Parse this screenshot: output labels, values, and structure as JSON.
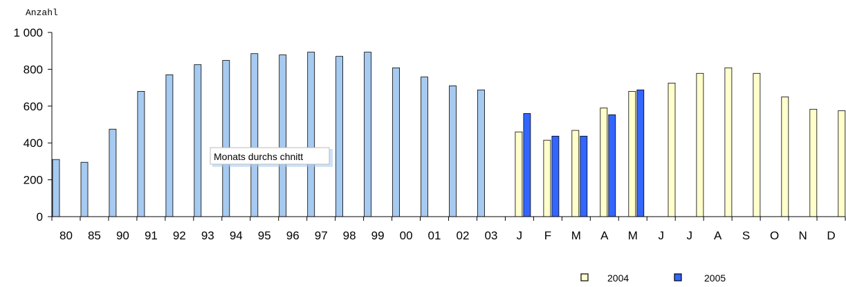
{
  "chart_data": {
    "type": "bar",
    "ylabel": "Anzahl",
    "ylim": [
      0,
      1000
    ],
    "yticks": [
      "0",
      "200",
      "400",
      "600",
      "800",
      "1 000"
    ],
    "grid": false,
    "categories": [
      "80",
      "85",
      "90",
      "91",
      "92",
      "93",
      "94",
      "95",
      "96",
      "97",
      "98",
      "99",
      "00",
      "01",
      "02",
      "03",
      "J",
      "F",
      "M",
      "A",
      "M",
      "J",
      "J",
      "A",
      "S",
      "O",
      "N",
      "D"
    ],
    "annotation": "Monats durchs chnitt",
    "series": [
      {
        "color": "#a6caf0",
        "values": [
          310,
          295,
          475,
          680,
          770,
          825,
          848,
          885,
          878,
          893,
          870,
          893,
          808,
          758,
          710,
          688,
          null,
          null,
          null,
          null,
          null,
          null,
          null,
          null,
          null,
          null,
          null,
          null
        ]
      },
      {
        "name": "2004",
        "color": "#ffffcc",
        "values": [
          null,
          null,
          null,
          null,
          null,
          null,
          null,
          null,
          null,
          null,
          null,
          null,
          null,
          null,
          null,
          null,
          460,
          415,
          468,
          590,
          680,
          725,
          778,
          808,
          778,
          650,
          583,
          575
        ]
      },
      {
        "name": "2005",
        "color": "#3366ff",
        "values": [
          null,
          null,
          null,
          null,
          null,
          null,
          null,
          null,
          null,
          null,
          null,
          null,
          null,
          null,
          null,
          null,
          560,
          437,
          437,
          553,
          688,
          null,
          null,
          null,
          null,
          null,
          null,
          null
        ]
      }
    ],
    "legend": [
      "2004",
      "2005"
    ],
    "legend_position": "bottom-right"
  }
}
